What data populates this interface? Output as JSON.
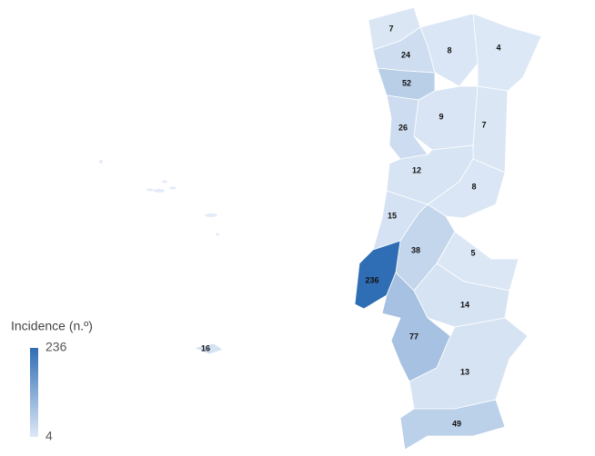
{
  "chart_data": {
    "type": "choropleth",
    "legend_title": "Incidence (n.º)",
    "values": [
      7,
      24,
      8,
      4,
      52,
      9,
      7,
      26,
      12,
      8,
      15,
      38,
      5,
      236,
      14,
      77,
      13,
      49,
      16
    ],
    "clim": [
      4,
      236
    ],
    "colors": [
      "#dde8f6",
      "#2f6db4"
    ]
  }
}
